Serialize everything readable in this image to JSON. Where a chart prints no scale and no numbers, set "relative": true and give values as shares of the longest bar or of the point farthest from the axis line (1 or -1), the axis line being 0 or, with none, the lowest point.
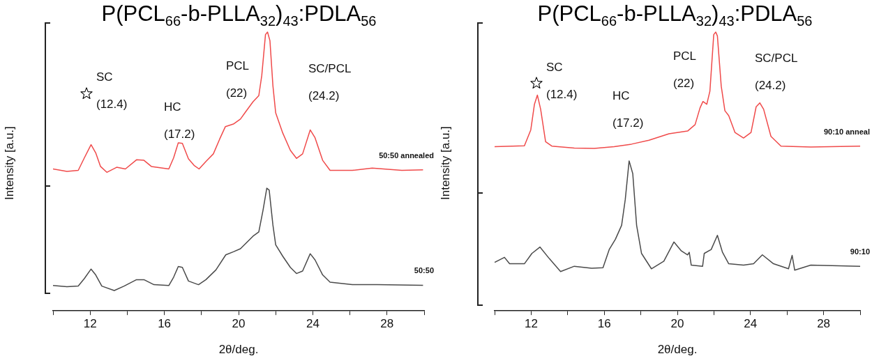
{
  "chart_data": [
    {
      "type": "line",
      "title": "P(PCL$_{66}$-b-PLLA$_{32}$)$_{43}$:PDLA$_{56}$",
      "xlabel": "2θ/deg.",
      "ylabel": "Intensity [a.u.]",
      "relative": true,
      "tick_labels": "x",
      "xlim": [
        10,
        30
      ],
      "xticks": [
        {
          "value": 10,
          "label": null
        },
        12,
        {
          "value": 14,
          "label": null
        },
        16,
        {
          "value": 18,
          "label": null
        },
        20,
        {
          "value": 22,
          "label": null
        },
        24,
        {
          "value": 26,
          "label": null
        },
        28,
        {
          "value": 30,
          "label": null
        }
      ],
      "annotations": [
        "SC\n(12.4)",
        "HC\n(17.2)",
        "PCL\n(22)",
        "SC/PCL\n(24.2)"
      ],
      "series": [
        {
          "name": "50:50 annealed",
          "color": "#f04a4a",
          "x": [
            10,
            10.75,
            11.36,
            11.69,
            12.05,
            12.3,
            12.56,
            12.9,
            13.43,
            13.9,
            14.5,
            14.9,
            15.3,
            16.24,
            16.5,
            16.75,
            16.97,
            17.3,
            17.6,
            17.87,
            18.24,
            18.64,
            18.98,
            19.29,
            19.72,
            20.1,
            20.38,
            20.78,
            21.09,
            21.25,
            21.45,
            21.56,
            21.69,
            21.85,
            22.0,
            22.38,
            22.79,
            23.12,
            23.45,
            23.86,
            24.12,
            24.53,
            24.93,
            26.13,
            27.2,
            28.8,
            29.94
          ],
          "values": [
            0.509,
            0.5,
            0.504,
            0.549,
            0.596,
            0.567,
            0.518,
            0.497,
            0.515,
            0.509,
            0.542,
            0.54,
            0.518,
            0.509,
            0.549,
            0.603,
            0.601,
            0.545,
            0.522,
            0.509,
            0.536,
            0.563,
            0.616,
            0.661,
            0.67,
            0.688,
            0.714,
            0.75,
            0.772,
            0.844,
            0.991,
            1.0,
            0.969,
            0.808,
            0.71,
            0.638,
            0.576,
            0.547,
            0.563,
            0.649,
            0.621,
            0.54,
            0.504,
            0.504,
            0.512,
            0.504,
            0.506
          ]
        },
        {
          "name": "50:50",
          "color": "#4a4a4a",
          "x": [
            10,
            10.75,
            11.36,
            11.69,
            12.05,
            12.3,
            12.63,
            13.3,
            13.83,
            14.5,
            14.9,
            15.44,
            16.24,
            16.5,
            16.75,
            16.97,
            17.3,
            17.84,
            18.24,
            18.78,
            19.31,
            19.72,
            20.1,
            20.78,
            21.09,
            21.32,
            21.52,
            21.65,
            21.85,
            22.0,
            22.38,
            22.79,
            23.12,
            23.45,
            23.86,
            24.12,
            24.53,
            24.93,
            26.13,
            27.47,
            29.94
          ],
          "values": [
            0.091,
            0.087,
            0.089,
            0.116,
            0.15,
            0.129,
            0.089,
            0.073,
            0.089,
            0.112,
            0.112,
            0.094,
            0.091,
            0.121,
            0.159,
            0.156,
            0.107,
            0.094,
            0.112,
            0.147,
            0.201,
            0.212,
            0.223,
            0.268,
            0.283,
            0.362,
            0.44,
            0.433,
            0.308,
            0.237,
            0.196,
            0.156,
            0.134,
            0.143,
            0.205,
            0.183,
            0.129,
            0.103,
            0.094,
            0.094,
            0.092
          ]
        }
      ]
    },
    {
      "type": "line",
      "title": "P(PCL$_{66}$-b-PLLA$_{32}$)$_{43}$:PDLA$_{56}$",
      "xlabel": "2θ/deg.",
      "ylabel": "Intensity [a.u.]",
      "relative": true,
      "tick_labels": "x",
      "xlim": [
        10,
        30
      ],
      "xticks": [
        {
          "value": 10,
          "label": null
        },
        12,
        {
          "value": 14,
          "label": null
        },
        16,
        {
          "value": 18,
          "label": null
        },
        20,
        {
          "value": 22,
          "label": null
        },
        24,
        {
          "value": 26,
          "label": null
        },
        28,
        {
          "value": 30,
          "label": null
        }
      ],
      "annotations": [
        "SC\n(12.4)",
        "HC\n(17.2)",
        "PCL\n(22)",
        "SC/PCL\n(24.2)"
      ],
      "series": [
        {
          "name": "90:10 anneal",
          "color": "#f04a4a",
          "x": [
            10,
            11.63,
            11.98,
            12.18,
            12.34,
            12.52,
            12.79,
            13.13,
            14.36,
            15.45,
            16.54,
            17.49,
            18.45,
            19.54,
            20.56,
            20.97,
            21.24,
            21.4,
            21.61,
            21.78,
            21.99,
            22.1,
            22.19,
            22.4,
            22.6,
            22.81,
            23.15,
            23.62,
            24.03,
            24.31,
            24.51,
            24.72,
            25.12,
            25.67,
            27.3,
            30
          ],
          "values": [
            0.589,
            0.592,
            0.649,
            0.741,
            0.774,
            0.723,
            0.607,
            0.591,
            0.584,
            0.583,
            0.589,
            0.598,
            0.612,
            0.635,
            0.645,
            0.668,
            0.728,
            0.751,
            0.741,
            0.788,
            0.991,
            1.0,
            0.986,
            0.806,
            0.718,
            0.7,
            0.64,
            0.62,
            0.64,
            0.732,
            0.746,
            0.723,
            0.626,
            0.591,
            0.588,
            0.591
          ]
        },
        {
          "name": "90:10",
          "color": "#4a4a4a",
          "x": [
            10,
            10.54,
            10.82,
            11.63,
            12.04,
            12.48,
            13.0,
            13.61,
            14.36,
            15.31,
            15.93,
            16.27,
            16.61,
            16.95,
            17.15,
            17.36,
            17.56,
            17.77,
            18.04,
            18.58,
            19.26,
            19.81,
            20.22,
            20.56,
            20.65,
            20.76,
            21.38,
            21.47,
            21.85,
            22.19,
            22.47,
            22.81,
            23.62,
            24.17,
            24.65,
            25.26,
            26.08,
            26.28,
            26.42,
            27.3,
            30
          ],
          "values": [
            0.174,
            0.192,
            0.169,
            0.169,
            0.206,
            0.229,
            0.187,
            0.141,
            0.16,
            0.153,
            0.155,
            0.22,
            0.257,
            0.307,
            0.4,
            0.538,
            0.492,
            0.307,
            0.206,
            0.151,
            0.178,
            0.247,
            0.215,
            0.201,
            0.21,
            0.164,
            0.16,
            0.206,
            0.22,
            0.271,
            0.21,
            0.169,
            0.164,
            0.169,
            0.201,
            0.169,
            0.151,
            0.199,
            0.146,
            0.164,
            0.16
          ]
        }
      ]
    }
  ]
}
